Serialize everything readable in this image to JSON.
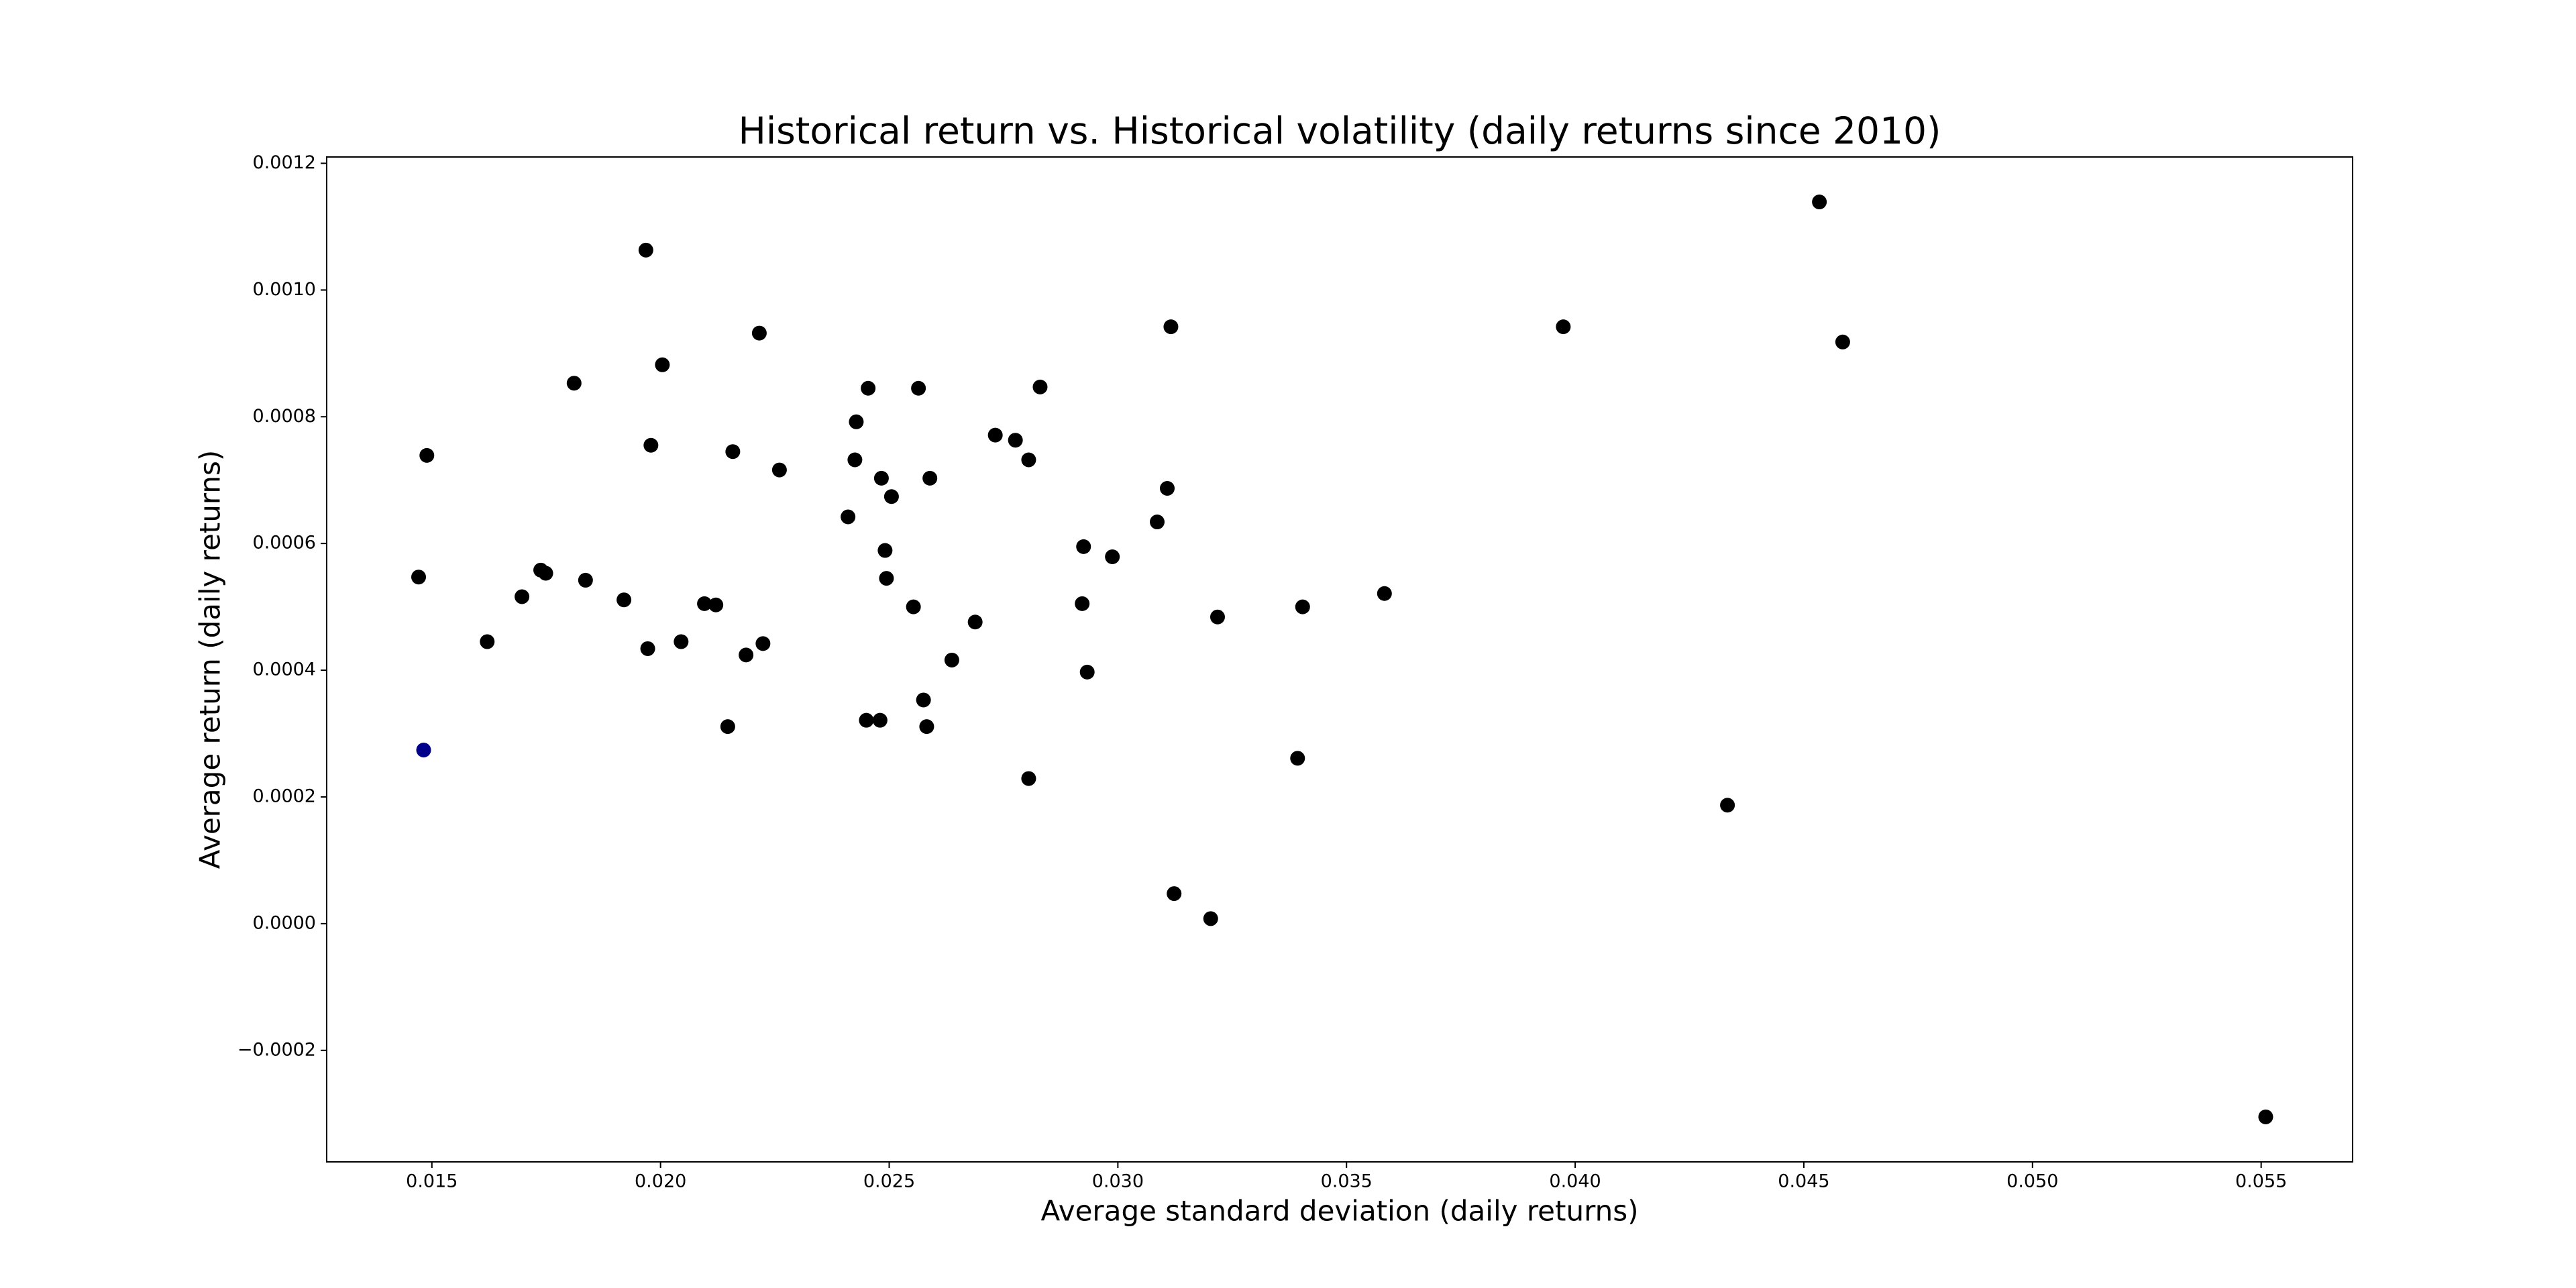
{
  "chart_data": {
    "type": "scatter",
    "title": "Historical return vs. Historical volatility (daily returns since 2010)",
    "x_label": "Average standard deviation (daily returns)",
    "y_label": "Average return (daily returns)",
    "xlim": [
      0.0127,
      0.057
    ],
    "ylim": [
      -0.000376,
      0.00121
    ],
    "xticks": [
      0.015,
      {
        "value": 0.02,
        "label": "0.020"
      },
      0.025,
      {
        "value": 0.03,
        "label": "0.030"
      },
      0.035,
      {
        "value": 0.04,
        "label": "0.040"
      },
      0.045,
      {
        "value": 0.05,
        "label": "0.050"
      },
      0.055
    ],
    "yticks": [
      {
        "value": -0.0002,
        "label": "−0.0002"
      },
      {
        "value": 0,
        "label": "0.0000"
      },
      0.0002,
      0.0004,
      0.0006,
      0.0008,
      {
        "value": 0.001,
        "label": "0.0010"
      },
      0.0012
    ],
    "x": [
      0.04534,
      0.01968,
      0.03116,
      0.03974,
      0.04585,
      0.02216,
      0.02004,
      0.01811,
      0.02454,
      0.02564,
      0.0283,
      0.02428,
      0.02732,
      0.02776,
      0.01489,
      0.01979,
      0.02158,
      0.02425,
      0.02805,
      0.0226,
      0.02483,
      0.02589,
      0.03108,
      0.02505,
      0.0241,
      0.03086,
      0.02925,
      0.02491,
      0.02988,
      0.01471,
      0.01738,
      0.01749,
      0.01836,
      0.02494,
      0.01697,
      0.03583,
      0.0192,
      0.02096,
      0.02121,
      0.02922,
      0.02553,
      0.03404,
      0.03218,
      0.02688,
      0.01621,
      0.02045,
      0.02224,
      0.01972,
      0.02187,
      0.02637,
      0.02933,
      0.02575,
      0.0245,
      0.0248,
      0.02147,
      0.02582,
      0.01482,
      0.03393,
      0.02805,
      0.04333,
      0.03123,
      0.03203,
      0.0551
    ],
    "y": [
      0.001139,
      0.001063,
      0.000942,
      0.000942,
      0.000918,
      0.000932,
      0.000882,
      0.000853,
      0.000845,
      0.000845,
      0.000847,
      0.000792,
      0.000771,
      0.000763,
      0.000739,
      0.000755,
      0.000745,
      0.000732,
      0.000732,
      0.000716,
      0.000703,
      0.000703,
      0.000687,
      0.000674,
      0.000642,
      0.000634,
      0.000595,
      0.000589,
      0.000579,
      0.000547,
      0.000558,
      0.000553,
      0.000542,
      0.000545,
      0.000516,
      0.000521,
      0.000511,
      0.000505,
      0.000503,
      0.000505,
      0.0005,
      0.0005,
      0.000484,
      0.000476,
      0.000445,
      0.000445,
      0.000442,
      0.000434,
      0.000424,
      0.000416,
      0.000397,
      0.000353,
      0.000321,
      0.000321,
      0.000311,
      0.000311,
      0.000274,
      0.000261,
      0.000229,
      0.000187,
      4.74e-05,
      7.9e-06,
      -0.000305
    ],
    "colors": [
      "#000000",
      "#000000",
      "#000000",
      "#000000",
      "#000000",
      "#000000",
      "#000000",
      "#000000",
      "#000000",
      "#000000",
      "#000000",
      "#000000",
      "#000000",
      "#000000",
      "#000000",
      "#000000",
      "#000000",
      "#000000",
      "#000000",
      "#000000",
      "#000000",
      "#000000",
      "#000000",
      "#000000",
      "#000000",
      "#000000",
      "#000000",
      "#000000",
      "#000000",
      "#000000",
      "#000000",
      "#000000",
      "#000000",
      "#000000",
      "#000000",
      "#000000",
      "#000000",
      "#000000",
      "#000000",
      "#000000",
      "#000000",
      "#000000",
      "#000000",
      "#000000",
      "#000000",
      "#000000",
      "#000000",
      "#000000",
      "#000000",
      "#000000",
      "#000000",
      "#000000",
      "#000000",
      "#000000",
      "#000000",
      "#000000",
      "#00008b",
      "#000000",
      "#000000",
      "#000000",
      "#000000",
      "#000000",
      "#000000"
    ]
  }
}
